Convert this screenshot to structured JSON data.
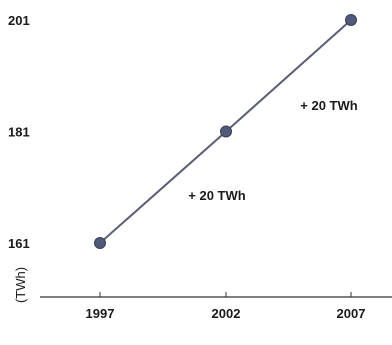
{
  "chart_data": {
    "type": "line",
    "title": "",
    "xlabel": "",
    "ylabel": "(TWh)",
    "x": [
      "1997",
      "2002",
      "2007"
    ],
    "series": [
      {
        "values": [
          161,
          181,
          201
        ],
        "color": "#4f5a7c"
      }
    ],
    "yticks": [
      "161",
      "181",
      "201"
    ],
    "ylim": [
      161,
      201
    ],
    "grid": false,
    "annotations": [
      {
        "text": "+ 20 TWh",
        "between": [
          "1997",
          "2002"
        ]
      },
      {
        "text": "+ 20 TWh",
        "between": [
          "2002",
          "2007"
        ]
      }
    ],
    "line_color": "#5a5f74",
    "axis_color": "#333333"
  }
}
